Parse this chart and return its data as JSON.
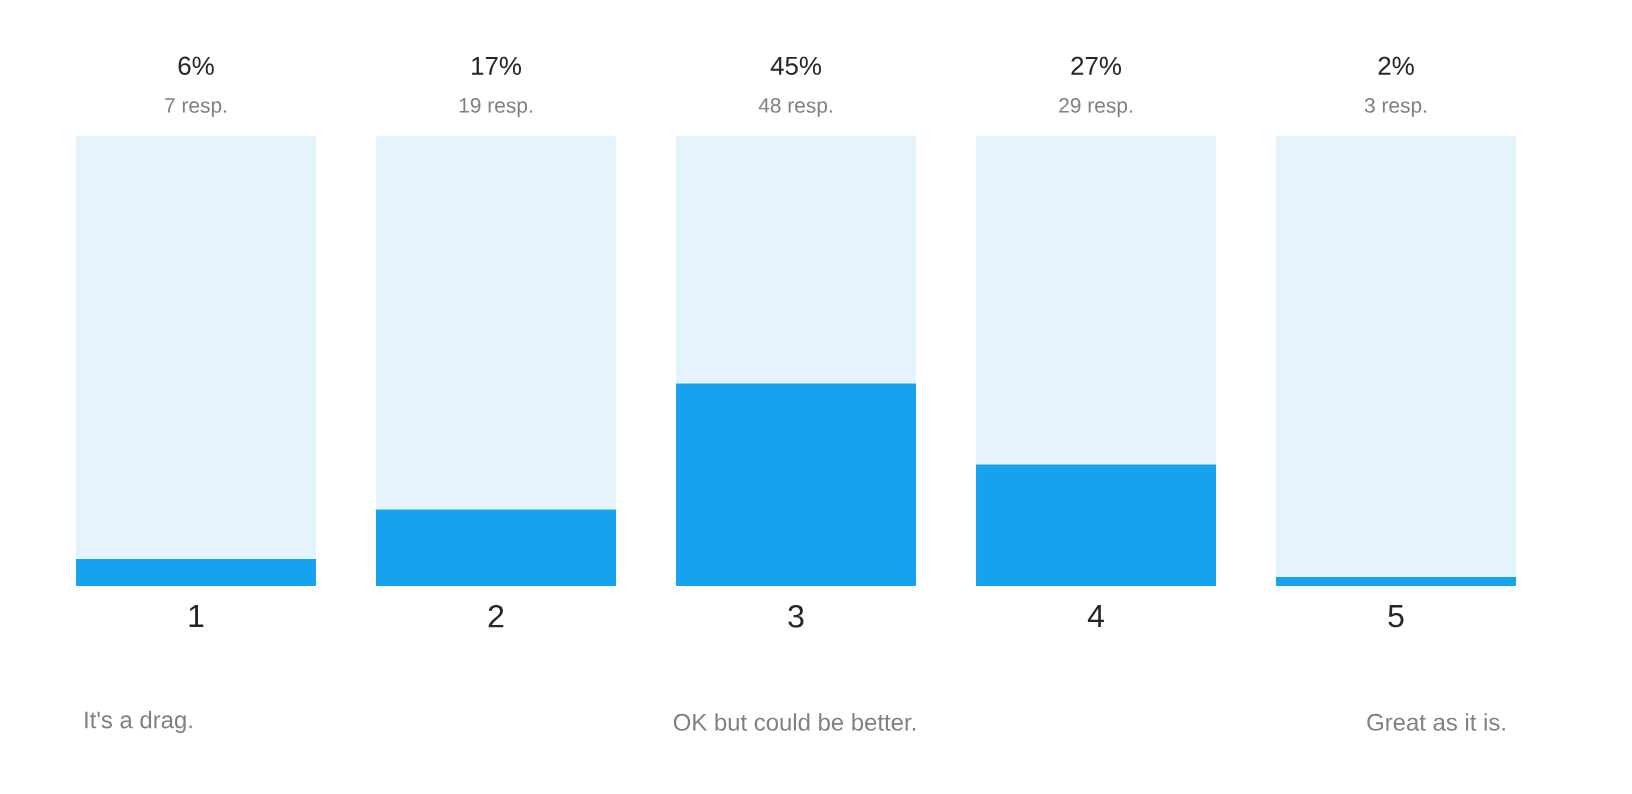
{
  "chart_data": {
    "type": "bar",
    "stacked": true,
    "categories": [
      "1",
      "2",
      "3",
      "4",
      "5"
    ],
    "series": [
      {
        "color": "#17a2ef",
        "values": [
          6,
          17,
          45,
          27,
          2
        ],
        "value_labels": [
          "6%",
          "17%",
          "45%",
          "27%",
          "2%"
        ]
      },
      {
        "color": "#e5f3fd",
        "values": [
          94,
          83,
          55,
          73,
          98
        ]
      }
    ],
    "tick_labels": "x",
    "annotations": [
      "7 resp.",
      "19 resp.",
      "48 resp.",
      "29 resp.",
      "3 resp.",
      "It's a drag.",
      "OK but could be better.",
      "Great as it is."
    ]
  }
}
